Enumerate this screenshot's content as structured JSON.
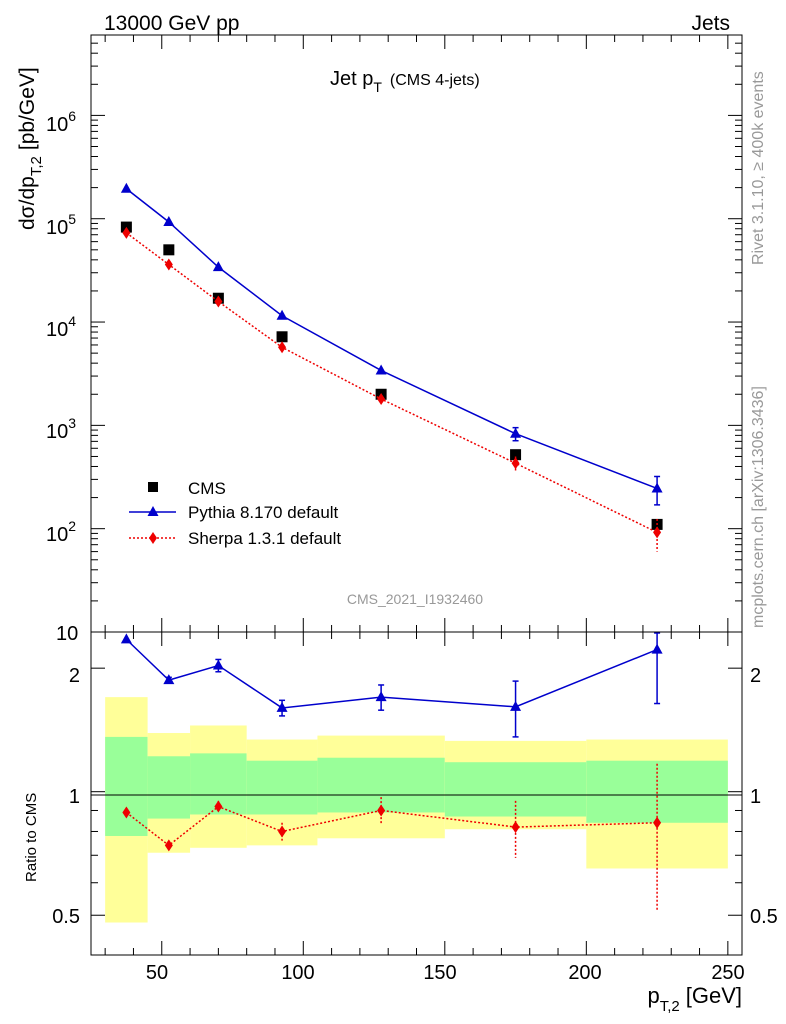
{
  "header": {
    "energy_label": "13000 GeV pp",
    "category_label": "Jets"
  },
  "side": {
    "rivet_label": "Rivet 3.1.10, ≥ 400k events",
    "source_label": "mcplots.cern.ch [arXiv:1306.3436]"
  },
  "main": {
    "title": "Jet p",
    "title_sub": "T",
    "title_note": "(CMS 4-jets)",
    "ylabel": "dσ/dp",
    "ylabel_sub": "T,2",
    "ylabel_unit": "[pb/GeV]",
    "analysis_id": "CMS_2021_I1932460",
    "ytick_labels": [
      "10",
      "10",
      "10",
      "10",
      "10",
      "10"
    ],
    "ytick_exponents": [
      "2",
      "3",
      "4",
      "5",
      "6",
      ""
    ]
  },
  "ratio": {
    "ylabel": "Ratio to CMS",
    "ytick_labels": [
      "0.5",
      "1",
      "2"
    ]
  },
  "xaxis": {
    "label": "p",
    "label_sub": "T,2",
    "label_unit": "[GeV]",
    "tick_labels": [
      "50",
      "100",
      "150",
      "200",
      "250"
    ]
  },
  "legend": [
    {
      "name": "CMS",
      "color": "#000000",
      "marker": "square",
      "line": "none"
    },
    {
      "name": "Pythia 8.170 default",
      "color": "#0000cc",
      "marker": "triangle",
      "line": "solid"
    },
    {
      "name": "Sherpa 1.3.1 default",
      "color": "#ee0000",
      "marker": "diamond",
      "line": "dotted"
    }
  ],
  "chart_data": {
    "type": "scatter",
    "title": "Jet pT (CMS 4-jets)",
    "xlabel": "pT,2 [GeV]",
    "ylabel": "dσ/dpT,2 [pb/GeV]",
    "xlim": [
      25,
      255
    ],
    "ylim": [
      10,
      6000000
    ],
    "yscale": "log",
    "x": [
      37.5,
      52.5,
      70,
      92.5,
      127.5,
      175,
      225
    ],
    "bin_edges": [
      30,
      45,
      60,
      80,
      105,
      150,
      200,
      250
    ],
    "series": [
      {
        "name": "CMS",
        "values": [
          83000,
          50000,
          17000,
          7200,
          2000,
          520,
          110
        ]
      },
      {
        "name": "Pythia 8.170 default",
        "values": [
          195000,
          93000,
          34000,
          11500,
          3400,
          830,
          245
        ],
        "err": [
          0,
          0,
          0,
          0,
          0,
          120,
          75
        ]
      },
      {
        "name": "Sherpa 1.3.1 default",
        "values": [
          73000,
          36000,
          15800,
          5700,
          1800,
          430,
          92
        ],
        "err": [
          0,
          0,
          0,
          0,
          0,
          70,
          32
        ]
      }
    ],
    "ratio": {
      "ylabel": "Ratio to CMS",
      "ylim": [
        0.4,
        2.45
      ],
      "yscale": "log",
      "pythia": [
        2.35,
        1.87,
        2.03,
        1.6,
        1.7,
        1.61,
        2.22
      ],
      "pythia_err": [
        0,
        0.03,
        0.07,
        0.07,
        0.12,
        0.25,
        0.58
      ],
      "sherpa": [
        0.89,
        0.74,
        0.92,
        0.8,
        0.9,
        0.82,
        0.84
      ],
      "sherpa_err": [
        0,
        0.02,
        0.03,
        0.04,
        0.07,
        0.13,
        0.33
      ],
      "band_inner": [
        [
          0.78,
          1.36
        ],
        [
          0.86,
          1.22
        ],
        [
          0.88,
          1.24
        ],
        [
          0.88,
          1.19
        ],
        [
          0.89,
          1.21
        ],
        [
          0.87,
          1.18
        ],
        [
          0.84,
          1.19
        ]
      ],
      "band_outer": [
        [
          0.48,
          1.7
        ],
        [
          0.71,
          1.39
        ],
        [
          0.73,
          1.45
        ],
        [
          0.74,
          1.34
        ],
        [
          0.77,
          1.37
        ],
        [
          0.81,
          1.33
        ],
        [
          0.65,
          1.34
        ]
      ]
    }
  }
}
